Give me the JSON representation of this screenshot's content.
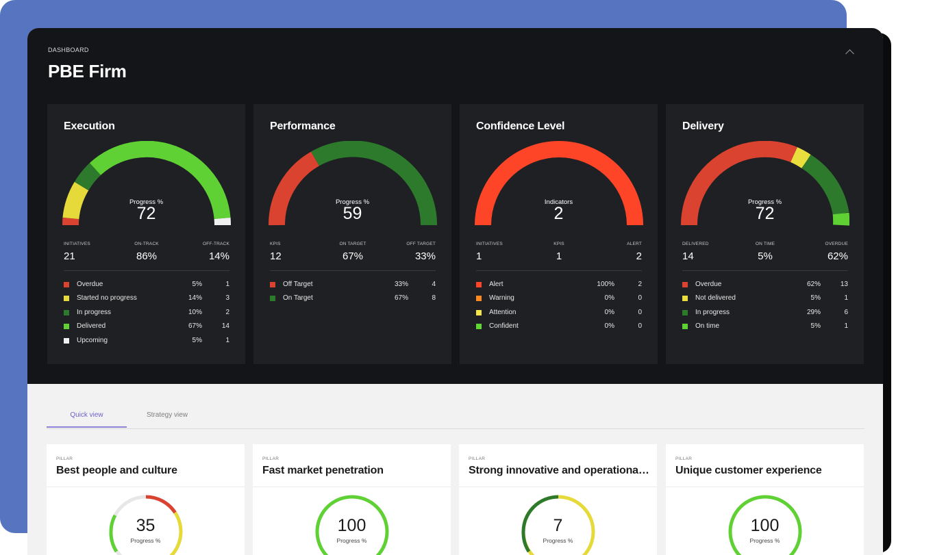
{
  "header": {
    "breadcrumb": "DASHBOARD",
    "title": "PBE Firm"
  },
  "colors": {
    "overdue": "#d9432f",
    "started_no_progress": "#e6d93a",
    "in_progress": "#2d7a2d",
    "delivered": "#5fd134",
    "upcoming": "#f0f0f0",
    "alert": "#ff4527",
    "warning": "#ff8a1c",
    "attention": "#f3e54a",
    "confident": "#60d834",
    "not_delivered": "#e9de3d"
  },
  "cards": [
    {
      "title": "Execution",
      "gauge_label": "Progress %",
      "gauge_value": "72",
      "stats": [
        {
          "label": "INITIATIVES",
          "value": "21"
        },
        {
          "label": "ON-TRACK",
          "value": "86%"
        },
        {
          "label": "OFF-TRACK",
          "value": "14%"
        }
      ],
      "legend": [
        {
          "name": "Overdue",
          "pct": "5%",
          "count": "1",
          "color": "#d9432f"
        },
        {
          "name": "Started no progress",
          "pct": "14%",
          "count": "3",
          "color": "#e6d93a"
        },
        {
          "name": "In progress",
          "pct": "10%",
          "count": "2",
          "color": "#2d7a2d"
        },
        {
          "name": "Delivered",
          "pct": "67%",
          "count": "14",
          "color": "#5fd134"
        },
        {
          "name": "Upcoming",
          "pct": "5%",
          "count": "1",
          "color": "#f0f0f0"
        }
      ]
    },
    {
      "title": "Performance",
      "gauge_label": "Progress %",
      "gauge_value": "59",
      "stats": [
        {
          "label": "KPIS",
          "value": "12"
        },
        {
          "label": "ON TARGET",
          "value": "67%"
        },
        {
          "label": "OFF TARGET",
          "value": "33%"
        }
      ],
      "legend": [
        {
          "name": "Off Target",
          "pct": "33%",
          "count": "4",
          "color": "#d9432f"
        },
        {
          "name": "On Target",
          "pct": "67%",
          "count": "8",
          "color": "#2d7a2d"
        }
      ]
    },
    {
      "title": "Confidence Level",
      "gauge_label": "Indicators",
      "gauge_value": "2",
      "stats": [
        {
          "label": "INITIATIVES",
          "value": "1"
        },
        {
          "label": "KPIS",
          "value": "1"
        },
        {
          "label": "ALERT",
          "value": "2"
        }
      ],
      "legend": [
        {
          "name": "Alert",
          "pct": "100%",
          "count": "2",
          "color": "#ff4527"
        },
        {
          "name": "Warning",
          "pct": "0%",
          "count": "0",
          "color": "#ff8a1c"
        },
        {
          "name": "Attention",
          "pct": "0%",
          "count": "0",
          "color": "#f3e54a"
        },
        {
          "name": "Confident",
          "pct": "0%",
          "count": "0",
          "color": "#60d834"
        }
      ]
    },
    {
      "title": "Delivery",
      "gauge_label": "Progress %",
      "gauge_value": "72",
      "stats": [
        {
          "label": "DELIVERED",
          "value": "14"
        },
        {
          "label": "ON TIME",
          "value": "5%"
        },
        {
          "label": "OVERDUE",
          "value": "62%"
        }
      ],
      "legend": [
        {
          "name": "Overdue",
          "pct": "62%",
          "count": "13",
          "color": "#d9432f"
        },
        {
          "name": "Not delivered",
          "pct": "5%",
          "count": "1",
          "color": "#e9de3d"
        },
        {
          "name": "In progress",
          "pct": "29%",
          "count": "6",
          "color": "#2d7a2d"
        },
        {
          "name": "On time",
          "pct": "5%",
          "count": "1",
          "color": "#5fd134"
        }
      ]
    }
  ],
  "tabs": [
    {
      "label": "Quick view",
      "active": true
    },
    {
      "label": "Strategy view",
      "active": false
    }
  ],
  "pillars": [
    {
      "caption": "PILLAR",
      "title": "Best people and culture",
      "value": "35",
      "label": "Progress %"
    },
    {
      "caption": "PILLAR",
      "title": "Fast market penetration",
      "value": "100",
      "label": "Progress %"
    },
    {
      "caption": "PILLAR",
      "title": "Strong innovative and operational ...",
      "value": "7",
      "label": "Progress %"
    },
    {
      "caption": "PILLAR",
      "title": "Unique customer experience",
      "value": "100",
      "label": "Progress %"
    }
  ]
}
